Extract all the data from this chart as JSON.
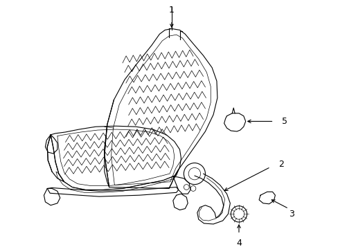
{
  "background_color": "#ffffff",
  "line_color": "#000000",
  "lw": 0.8,
  "tlw": 0.5,
  "fig_width": 4.89,
  "fig_height": 3.6,
  "dpi": 100
}
